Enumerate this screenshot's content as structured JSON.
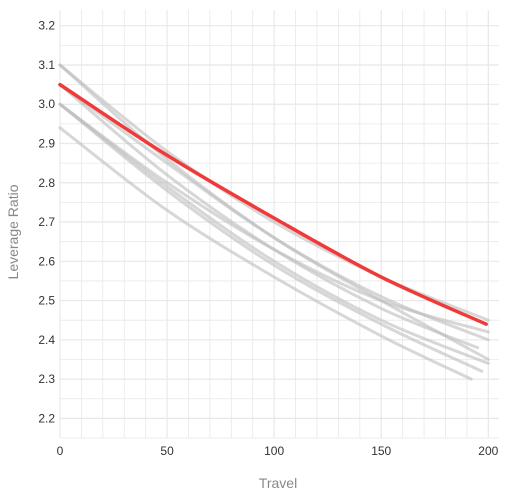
{
  "chart_data": {
    "type": "line",
    "xlabel": "Travel",
    "ylabel": "Leverage Ratio",
    "xlim": [
      0,
      205
    ],
    "ylim": [
      2.15,
      3.24
    ],
    "grid": true,
    "x_ticks": [
      0,
      50,
      100,
      150,
      200
    ],
    "y_ticks": [
      2.2,
      2.3,
      2.4,
      2.5,
      2.6,
      2.7,
      2.8,
      2.9,
      3.0,
      3.1,
      3.2
    ],
    "y_tick_labels": [
      "2.2",
      "2.3",
      "2.4",
      "2.5",
      "2.6",
      "2.7",
      "2.8",
      "2.9",
      "3.0",
      "3.1",
      "3.2"
    ],
    "colors": {
      "highlight": "#f03a3a",
      "others": "#bdbdbd",
      "grid": "#e8e8e8"
    },
    "series": [
      {
        "highlight": false,
        "x": [
          0,
          50,
          100,
          150,
          200
        ],
        "y": [
          3.1,
          2.88,
          2.7,
          2.56,
          2.45
        ]
      },
      {
        "highlight": false,
        "x": [
          0,
          50,
          100,
          150,
          200
        ],
        "y": [
          3.1,
          2.86,
          2.66,
          2.5,
          2.35
        ]
      },
      {
        "highlight": false,
        "x": [
          0,
          50,
          100,
          150,
          200
        ],
        "y": [
          3.05,
          2.85,
          2.66,
          2.51,
          2.4
        ]
      },
      {
        "highlight": false,
        "x": [
          0,
          50,
          100,
          150,
          195
        ],
        "y": [
          3.05,
          2.82,
          2.63,
          2.48,
          2.38
        ]
      },
      {
        "highlight": false,
        "x": [
          0,
          50,
          100,
          150,
          200
        ],
        "y": [
          3.0,
          2.8,
          2.63,
          2.5,
          2.42
        ]
      },
      {
        "highlight": false,
        "x": [
          0,
          50,
          100,
          150,
          200
        ],
        "y": [
          3.0,
          2.79,
          2.6,
          2.45,
          2.34
        ]
      },
      {
        "highlight": false,
        "x": [
          0,
          50,
          100,
          150,
          197
        ],
        "y": [
          3.0,
          2.78,
          2.59,
          2.44,
          2.32
        ]
      },
      {
        "highlight": false,
        "x": [
          0,
          50,
          100,
          150,
          192
        ],
        "y": [
          2.94,
          2.73,
          2.56,
          2.41,
          2.3
        ]
      },
      {
        "highlight": true,
        "x": [
          0,
          50,
          100,
          150,
          199
        ],
        "y": [
          3.05,
          2.87,
          2.71,
          2.56,
          2.44
        ]
      }
    ]
  }
}
